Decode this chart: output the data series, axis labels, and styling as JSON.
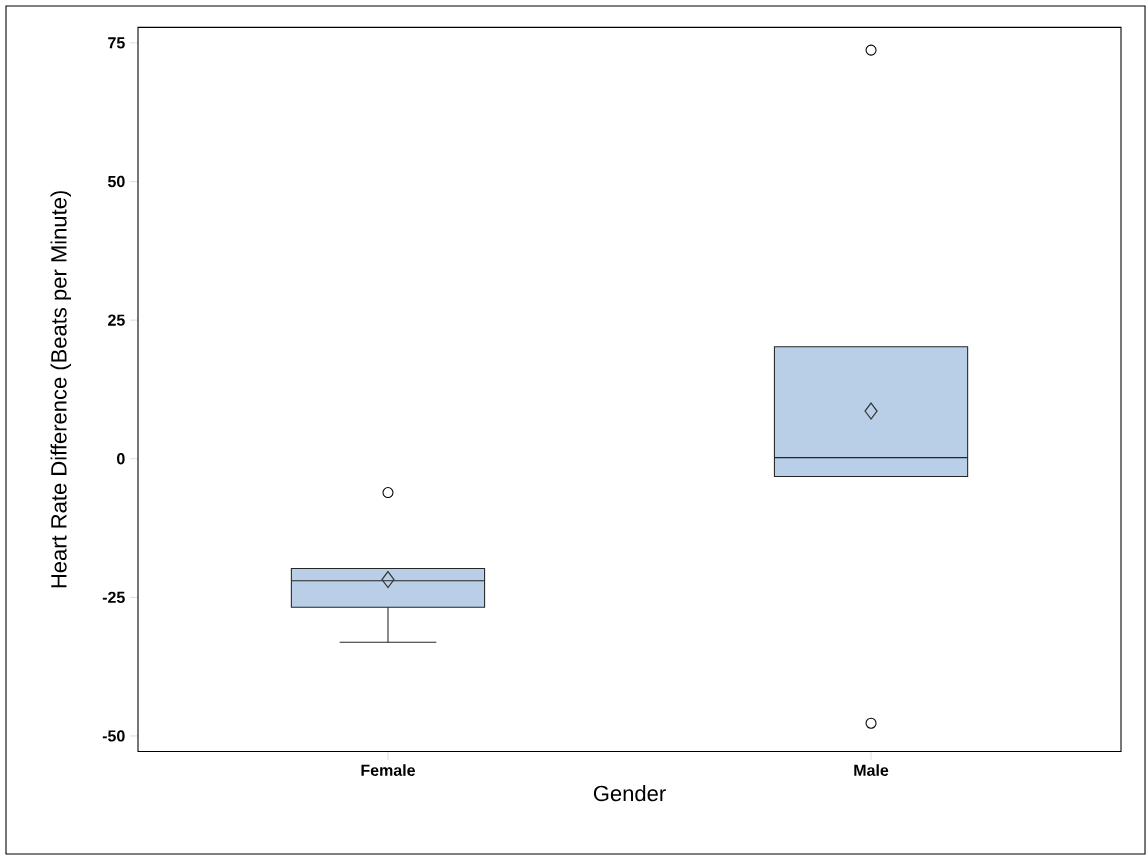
{
  "chart_data": {
    "type": "box",
    "xlabel": "Gender",
    "ylabel": "Heart Rate Difference (Beats per Minute)",
    "categories": [
      "Female",
      "Male"
    ],
    "boxes": [
      {
        "low": -33.1,
        "q1": -26.8,
        "median": -22.0,
        "q3": -19.8,
        "high": -19.8,
        "mean": -21.8,
        "outliers": [
          -6.1
        ]
      },
      {
        "low": -3.2,
        "q1": -3.2,
        "median": 0.2,
        "q3": 20.2,
        "high": 20.2,
        "mean": 8.6,
        "outliers": [
          73.7,
          -47.7
        ]
      }
    ],
    "color": "#b9cfe8",
    "ylim": [
      -52.8,
      77.8
    ],
    "yticks": [
      -50,
      -25,
      0,
      25,
      50,
      75
    ]
  }
}
